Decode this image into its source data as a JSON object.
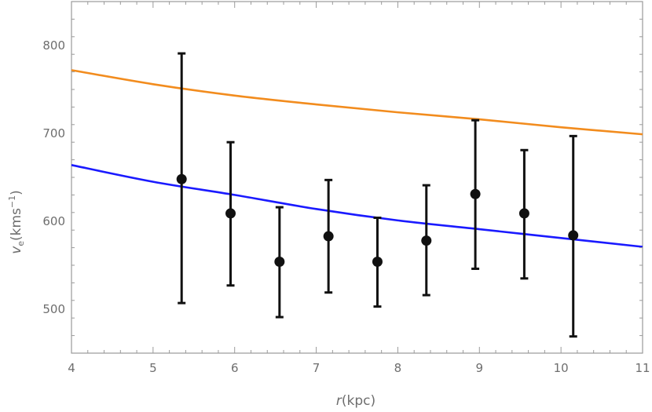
{
  "chart_data": {
    "type": "scatter",
    "title": "",
    "xlabel": {
      "var": "r",
      "unit": "(kpc)"
    },
    "ylabel": {
      "var": "v",
      "sub": "e",
      "unit_pre": "(kms",
      "unit_sup": "−1",
      "unit_post": ")"
    },
    "xlim": [
      4,
      11
    ],
    "ylim": [
      450,
      850
    ],
    "xticks": [
      4,
      5,
      6,
      7,
      8,
      9,
      10,
      11
    ],
    "yticks": [
      500,
      600,
      700,
      800
    ],
    "grid": false,
    "colors": {
      "points": "#111111",
      "upper_curve": "#f28c1e",
      "lower_curve": "#1a1aff",
      "frame": "#9a9a9a",
      "tick_text": "#6e6e6e"
    },
    "points": [
      {
        "x": 5.35,
        "y": 648,
        "ylow": 507,
        "yhigh": 791
      },
      {
        "x": 5.95,
        "y": 609,
        "ylow": 527,
        "yhigh": 690
      },
      {
        "x": 6.55,
        "y": 554,
        "ylow": 491,
        "yhigh": 616
      },
      {
        "x": 7.15,
        "y": 583,
        "ylow": 519,
        "yhigh": 647
      },
      {
        "x": 7.75,
        "y": 554,
        "ylow": 503,
        "yhigh": 604
      },
      {
        "x": 8.35,
        "y": 578,
        "ylow": 516,
        "yhigh": 641
      },
      {
        "x": 8.95,
        "y": 631,
        "ylow": 546,
        "yhigh": 715
      },
      {
        "x": 9.55,
        "y": 609,
        "ylow": 535,
        "yhigh": 681
      },
      {
        "x": 10.15,
        "y": 584,
        "ylow": 469,
        "yhigh": 697
      }
    ],
    "curves": [
      {
        "color_key": "upper_curve",
        "x": [
          4,
          5,
          6,
          7,
          8,
          9,
          10,
          11
        ],
        "y": [
          772,
          756,
          743,
          733,
          724,
          716,
          707,
          699
        ]
      },
      {
        "color_key": "lower_curve",
        "x": [
          4,
          5,
          6,
          7,
          8,
          9,
          10,
          11
        ],
        "y": [
          664,
          645,
          630,
          614,
          601,
          591,
          581,
          571
        ]
      }
    ]
  }
}
